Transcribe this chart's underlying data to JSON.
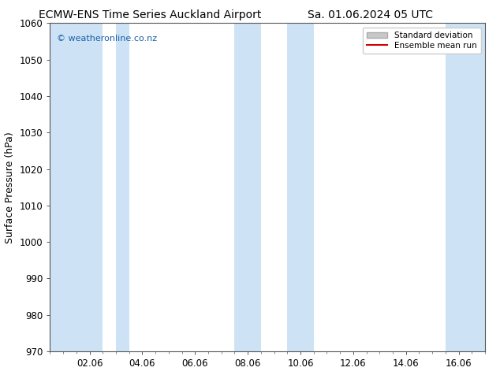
{
  "title_left": "ECMW-ENS Time Series Auckland Airport",
  "title_right": "Sa. 01.06.2024 05 UTC",
  "ylabel": "Surface Pressure (hPa)",
  "ylim": [
    970,
    1060
  ],
  "yticks": [
    970,
    980,
    990,
    1000,
    1010,
    1020,
    1030,
    1040,
    1050,
    1060
  ],
  "xlim_start": 0.0,
  "xlim_end": 16.5,
  "xtick_labels": [
    "02.06",
    "04.06",
    "06.06",
    "08.06",
    "10.06",
    "12.06",
    "14.06",
    "16.06"
  ],
  "xtick_positions": [
    1.5,
    3.5,
    5.5,
    7.5,
    9.5,
    11.5,
    13.5,
    15.5
  ],
  "shaded_bands": [
    {
      "x_start": 0.0,
      "x_end": 2.0
    },
    {
      "x_start": 2.5,
      "x_end": 3.0
    },
    {
      "x_start": 7.0,
      "x_end": 8.0
    },
    {
      "x_start": 9.0,
      "x_end": 10.0
    },
    {
      "x_start": 15.0,
      "x_end": 16.0
    },
    {
      "x_start": 16.0,
      "x_end": 16.5
    }
  ],
  "band_color": "#cde3f5",
  "background_color": "#ffffff",
  "plot_bg_color": "#ffffff",
  "watermark_text": "© weatheronline.co.nz",
  "watermark_color": "#1a5fa8",
  "legend_std_label": "Standard deviation",
  "legend_mean_label": "Ensemble mean run",
  "legend_std_facecolor": "#c8c8c8",
  "legend_std_edgecolor": "#aaaaaa",
  "legend_mean_color": "#cc0000",
  "title_fontsize": 10,
  "axis_label_fontsize": 9,
  "tick_fontsize": 8.5,
  "spine_color": "#555555"
}
